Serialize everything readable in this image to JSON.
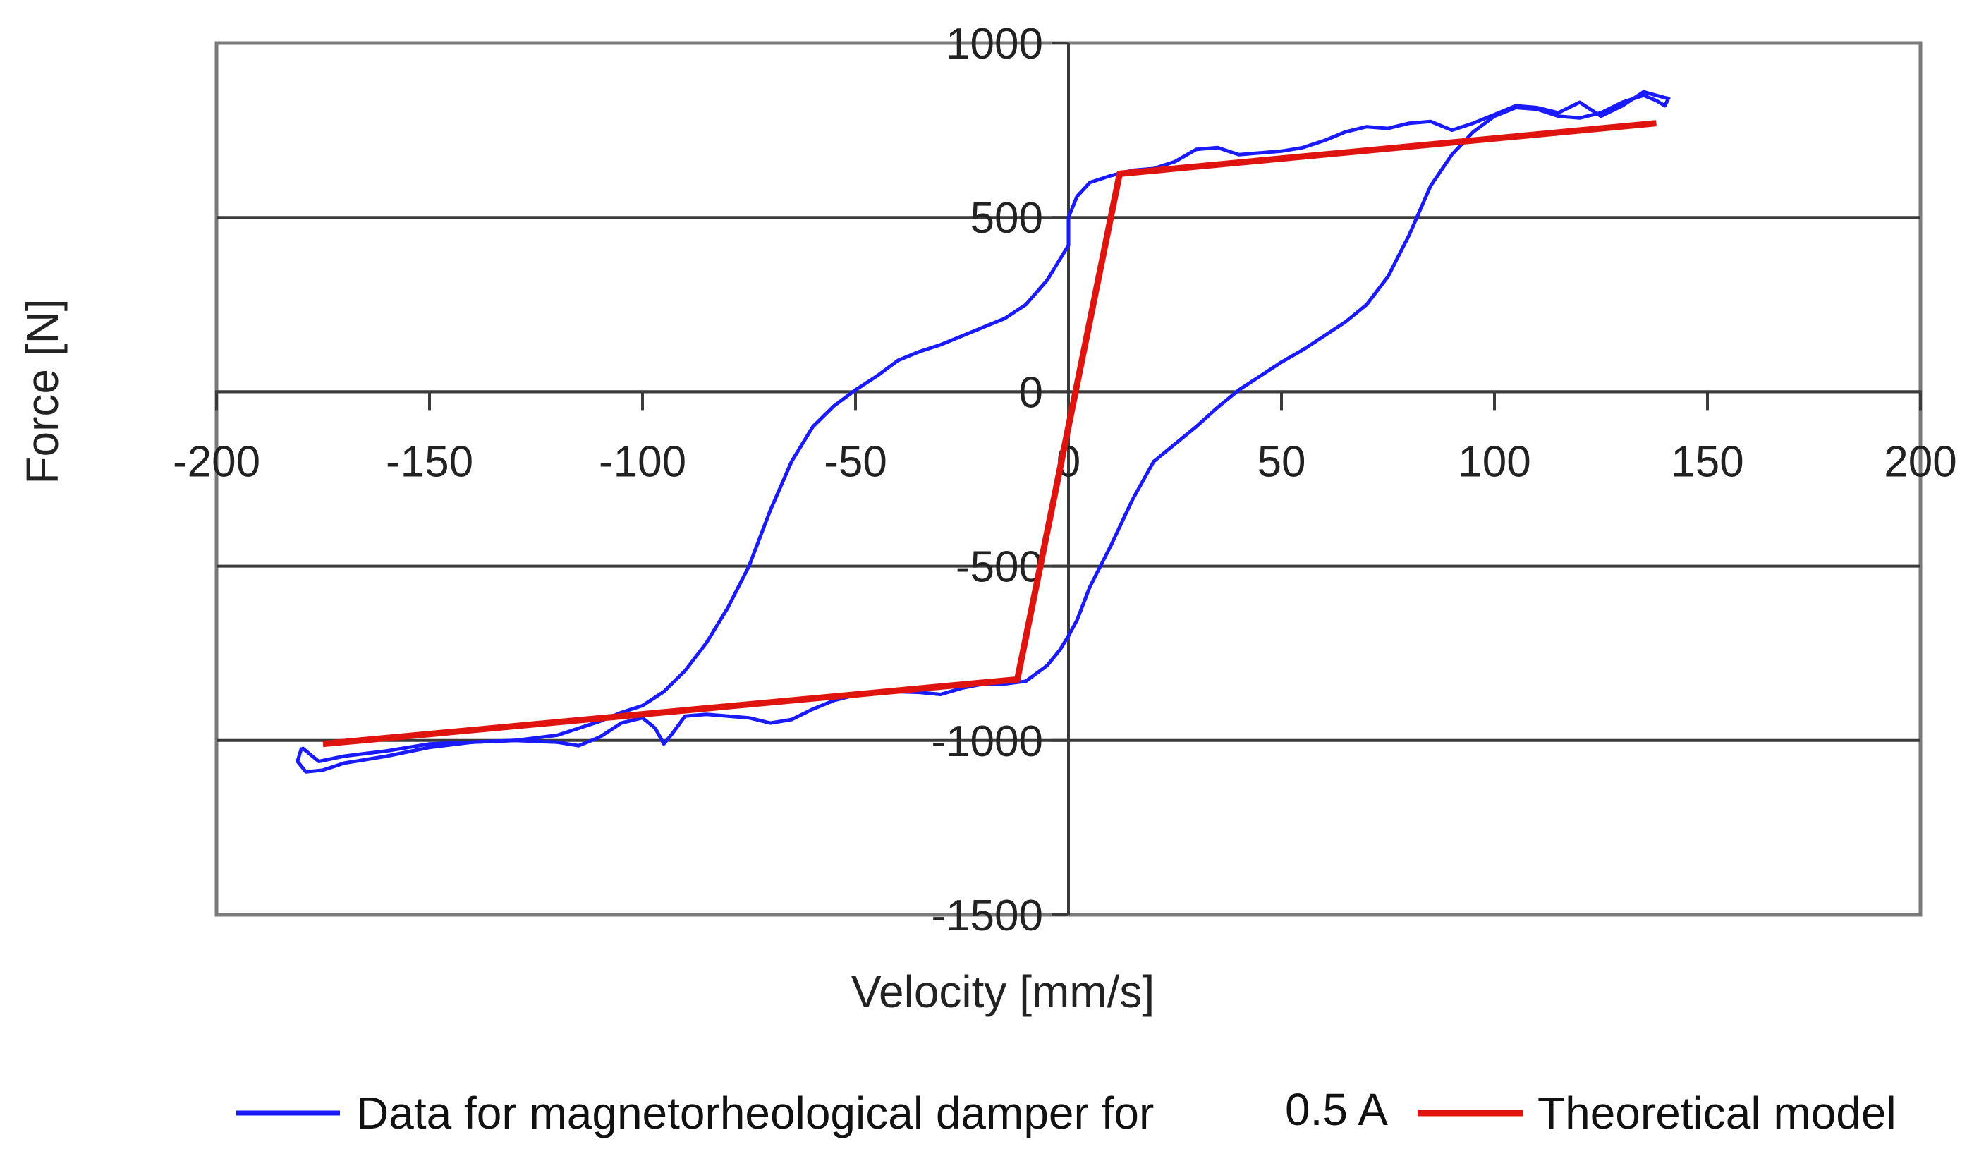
{
  "chart_data": {
    "type": "line",
    "title": "",
    "xlabel": "Velocity [mm/s]",
    "ylabel": "Force [N]",
    "xlim": [
      -200,
      200
    ],
    "ylim": [
      -1500,
      1000
    ],
    "x_ticks": [
      -200,
      -150,
      -100,
      -50,
      0,
      50,
      100,
      150,
      200
    ],
    "y_ticks": [
      1000,
      500,
      0,
      -500,
      -1000,
      -1500
    ],
    "x_tick_labels": [
      "-200",
      "-150",
      "-100",
      "-50",
      "0",
      "50",
      "100",
      "150",
      "200"
    ],
    "y_tick_labels": [
      "1000",
      "500",
      "0",
      "-500",
      "-1000",
      "-1500"
    ],
    "grid": "horizontal",
    "legend_position": "bottom",
    "series": [
      {
        "name": "Data for magnetorheological damper for 0.5 A",
        "color": "#1a1aff",
        "points": [
          [
            -180,
            -1020
          ],
          [
            -181,
            -1060
          ],
          [
            -179,
            -1090
          ],
          [
            -175,
            -1085
          ],
          [
            -170,
            -1065
          ],
          [
            -160,
            -1045
          ],
          [
            -150,
            -1020
          ],
          [
            -140,
            -1005
          ],
          [
            -130,
            -1000
          ],
          [
            -120,
            -1005
          ],
          [
            -115,
            -1015
          ],
          [
            -110,
            -990
          ],
          [
            -105,
            -950
          ],
          [
            -100,
            -935
          ],
          [
            -97,
            -965
          ],
          [
            -95,
            -1010
          ],
          [
            -93,
            -980
          ],
          [
            -90,
            -930
          ],
          [
            -85,
            -925
          ],
          [
            -80,
            -930
          ],
          [
            -75,
            -935
          ],
          [
            -70,
            -950
          ],
          [
            -65,
            -940
          ],
          [
            -60,
            -910
          ],
          [
            -55,
            -885
          ],
          [
            -50,
            -870
          ],
          [
            -45,
            -865
          ],
          [
            -40,
            -860
          ],
          [
            -35,
            -862
          ],
          [
            -30,
            -868
          ],
          [
            -25,
            -850
          ],
          [
            -20,
            -838
          ],
          [
            -15,
            -838
          ],
          [
            -10,
            -830
          ],
          [
            -8,
            -812
          ],
          [
            -5,
            -785
          ],
          [
            -2,
            -740
          ],
          [
            0,
            -700
          ],
          [
            2,
            -655
          ],
          [
            5,
            -560
          ],
          [
            10,
            -440
          ],
          [
            15,
            -310
          ],
          [
            20,
            -200
          ],
          [
            25,
            -150
          ],
          [
            30,
            -100
          ],
          [
            35,
            -45
          ],
          [
            40,
            5
          ],
          [
            45,
            45
          ],
          [
            50,
            85
          ],
          [
            55,
            120
          ],
          [
            60,
            160
          ],
          [
            65,
            200
          ],
          [
            70,
            250
          ],
          [
            75,
            330
          ],
          [
            80,
            450
          ],
          [
            85,
            590
          ],
          [
            90,
            680
          ],
          [
            95,
            745
          ],
          [
            100,
            790
          ],
          [
            105,
            815
          ],
          [
            110,
            810
          ],
          [
            115,
            790
          ],
          [
            120,
            785
          ],
          [
            125,
            800
          ],
          [
            130,
            830
          ],
          [
            135,
            850
          ],
          [
            138,
            835
          ],
          [
            140,
            820
          ],
          [
            141,
            845
          ]
        ],
        "points_return": [
          [
            141,
            840
          ],
          [
            138,
            850
          ],
          [
            135,
            860
          ],
          [
            130,
            820
          ],
          [
            125,
            790
          ],
          [
            120,
            830
          ],
          [
            115,
            800
          ],
          [
            110,
            815
          ],
          [
            105,
            820
          ],
          [
            100,
            795
          ],
          [
            95,
            770
          ],
          [
            90,
            750
          ],
          [
            85,
            775
          ],
          [
            80,
            770
          ],
          [
            75,
            755
          ],
          [
            70,
            760
          ],
          [
            65,
            745
          ],
          [
            60,
            720
          ],
          [
            55,
            700
          ],
          [
            50,
            690
          ],
          [
            45,
            685
          ],
          [
            40,
            680
          ],
          [
            35,
            700
          ],
          [
            30,
            695
          ],
          [
            25,
            660
          ],
          [
            20,
            640
          ],
          [
            15,
            635
          ],
          [
            10,
            620
          ],
          [
            5,
            600
          ],
          [
            2,
            560
          ],
          [
            0,
            500
          ],
          [
            0,
            420
          ],
          [
            -2,
            380
          ],
          [
            -5,
            320
          ],
          [
            -10,
            250
          ],
          [
            -15,
            210
          ],
          [
            -20,
            185
          ],
          [
            -25,
            160
          ],
          [
            -30,
            135
          ],
          [
            -35,
            115
          ],
          [
            -40,
            90
          ],
          [
            -45,
            45
          ],
          [
            -50,
            5
          ],
          [
            -55,
            -40
          ],
          [
            -60,
            -100
          ],
          [
            -65,
            -200
          ],
          [
            -70,
            -340
          ],
          [
            -75,
            -500
          ],
          [
            -80,
            -620
          ],
          [
            -85,
            -720
          ],
          [
            -90,
            -800
          ],
          [
            -95,
            -860
          ],
          [
            -100,
            -900
          ],
          [
            -105,
            -920
          ],
          [
            -110,
            -945
          ],
          [
            -120,
            -985
          ],
          [
            -130,
            -1000
          ],
          [
            -140,
            -1005
          ],
          [
            -150,
            -1010
          ],
          [
            -160,
            -1030
          ],
          [
            -170,
            -1045
          ],
          [
            -176,
            -1060
          ],
          [
            -180,
            -1020
          ]
        ]
      },
      {
        "name": "Theoretical model",
        "color": "#e0140f",
        "points": [
          [
            -175,
            -1010
          ],
          [
            -12,
            -825
          ],
          [
            12,
            625
          ],
          [
            138,
            770
          ]
        ]
      }
    ],
    "legend": {
      "data_label": "Data for magnetorheological damper for",
      "data_current": "0.5 A",
      "model_label": "Theoretical model"
    }
  }
}
